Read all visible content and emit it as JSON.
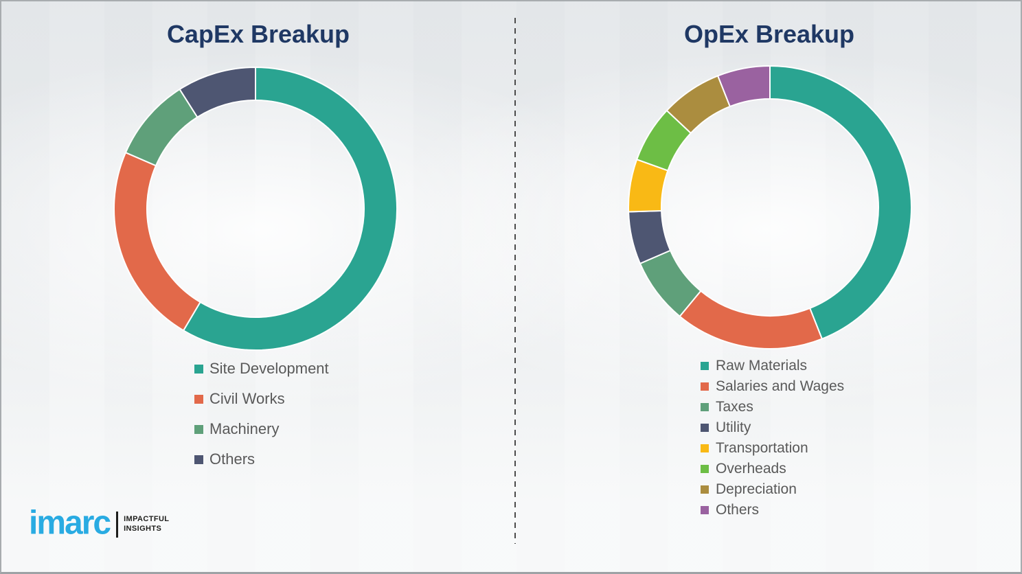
{
  "colors": {
    "background": "#ECEEF0",
    "title": "#1F3864",
    "legend_text": "#595959",
    "divider": "#4A4A4A",
    "segment_gap": "#FFFFFF",
    "logo_blue": "#29ABE2",
    "logo_dark": "#1D1D1B"
  },
  "chart_data": [
    {
      "type": "pie",
      "subtype": "donut",
      "title": "CapEx Breakup",
      "start_angle_deg": 0,
      "direction": "clockwise",
      "legend_position": "bottom-left",
      "units": "percent (estimated from arc angles, no data labels shown)",
      "segments": [
        {
          "label": "Site Development",
          "value": 58.5,
          "color": "#2AA491"
        },
        {
          "label": "Civil Works",
          "value": 23,
          "color": "#E2694A"
        },
        {
          "label": "Machinery",
          "value": 9.5,
          "color": "#5FA07A"
        },
        {
          "label": "Others",
          "value": 9,
          "color": "#4E5672"
        }
      ]
    },
    {
      "type": "pie",
      "subtype": "donut",
      "title": "OpEx Breakup",
      "start_angle_deg": 0,
      "direction": "clockwise",
      "legend_position": "bottom-left",
      "units": "percent (estimated from arc angles, no data labels shown)",
      "segments": [
        {
          "label": "Raw Materials",
          "value": 44,
          "color": "#2AA491"
        },
        {
          "label": "Salaries and Wages",
          "value": 17,
          "color": "#E2694A"
        },
        {
          "label": "Taxes",
          "value": 7.5,
          "color": "#5FA07A"
        },
        {
          "label": "Utility",
          "value": 6,
          "color": "#4E5672"
        },
        {
          "label": "Transportation",
          "value": 6,
          "color": "#F9B915"
        },
        {
          "label": "Overheads",
          "value": 6.5,
          "color": "#6DBE45"
        },
        {
          "label": "Depreciation",
          "value": 7,
          "color": "#AB8D3F"
        },
        {
          "label": "Others",
          "value": 6,
          "color": "#9A62A0"
        }
      ]
    }
  ],
  "branding": {
    "logo_text": "imarc",
    "tagline_line1": "IMPACTFUL",
    "tagline_line2": "INSIGHTS"
  }
}
